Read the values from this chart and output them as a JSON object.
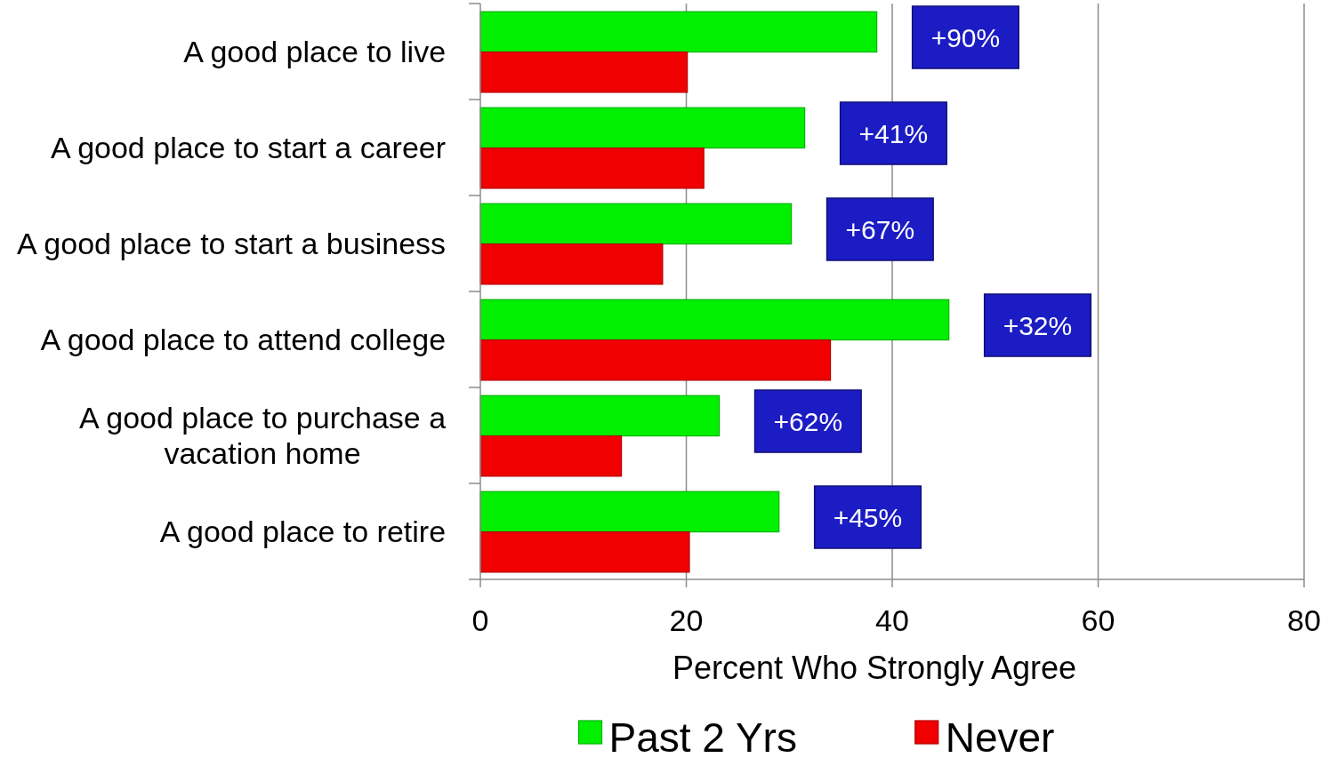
{
  "chart_data": {
    "type": "bar",
    "orientation": "horizontal",
    "categories": [
      "A good place to live",
      "A good place to start a career",
      "A good place to start a business",
      "A good place to attend college",
      "A good place to purchase a vacation home",
      "A good place to retire"
    ],
    "series": [
      {
        "name": "Past 2 Yrs",
        "color": "#00f000",
        "values": [
          38.5,
          31.5,
          30.2,
          45.5,
          23.2,
          29.0
        ]
      },
      {
        "name": "Never",
        "color": "#f00000",
        "values": [
          20.1,
          21.7,
          17.7,
          34.0,
          13.7,
          20.3
        ]
      }
    ],
    "xlabel": "Percent Who Strongly Agree",
    "xlim": [
      0,
      80
    ],
    "xticks": [
      0,
      20,
      40,
      60,
      80
    ],
    "grid": "x",
    "legend": "bottom",
    "annotations": [
      "+90%",
      "+41%",
      "+67%",
      "+32%",
      "+62%",
      "+45%"
    ]
  }
}
